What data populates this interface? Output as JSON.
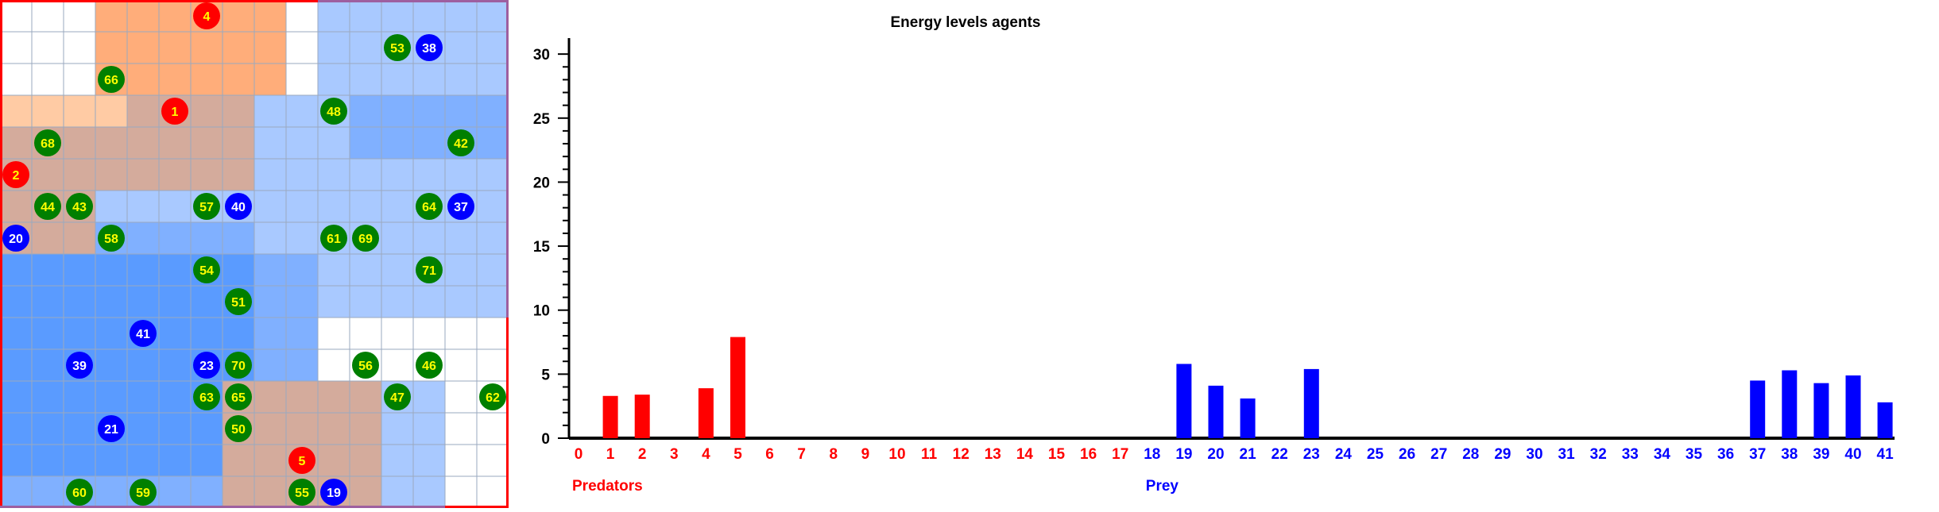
{
  "colors": {
    "predator": "#ff0000",
    "prey": "#0000ff",
    "grass_agent": "#007f00",
    "agent_label": "#ffff00",
    "prey_label": "#ffffff",
    "zone_white": "#ffffff",
    "zone_light_orange": "#ffcba4",
    "zone_orange": "#ffad7a",
    "zone_brown": "#d4ab9c",
    "zone_light_blue": "#a9c9ff",
    "zone_blue": "#80b0ff",
    "zone_mid_blue": "#5a9bff",
    "grid_line": "#9aa9bf",
    "border_red": "#ff0000",
    "border_purple": "#9e5fa0"
  },
  "grid": {
    "cols": 16,
    "rows": 16,
    "zones": [
      "WWWOOOOOOWBBBBBB",
      "WWWOOOOOOWBBBBBB",
      "WWWOOOOOOWBBBBBB",
      "LLLLDDDDBBBCCCCC",
      "DDDDDDDDBBBCCCCC",
      "DDDDDDDDBBBBBBBB",
      "DDDBBBBBBBBBBBBB",
      "DDDCCCCCBBBBBBBB",
      "MMMMMMMMCCBBBBBB",
      "MMMMMMMMCCBBBBBB",
      "MMMMMMMMCCWWWWWW",
      "MMMMMMMMCCWWWWWW",
      "MMMMMMMDDDDDBBWW",
      "MMMMMMMDDDDDBBWW",
      "MMMMMMMDDDDDBBWW",
      "CCCCCCCDDDDDBBWW"
    ],
    "agents": [
      {
        "id": "4",
        "kind": "predator",
        "col": 6,
        "row": 0
      },
      {
        "id": "1",
        "kind": "predator",
        "col": 5,
        "row": 3
      },
      {
        "id": "2",
        "kind": "predator",
        "col": 0,
        "row": 5
      },
      {
        "id": "5",
        "kind": "predator",
        "col": 9,
        "row": 14
      },
      {
        "id": "38",
        "kind": "prey",
        "col": 13,
        "row": 1
      },
      {
        "id": "40",
        "kind": "prey",
        "col": 7,
        "row": 6
      },
      {
        "id": "37",
        "kind": "prey",
        "col": 14,
        "row": 6
      },
      {
        "id": "20",
        "kind": "prey",
        "col": 0,
        "row": 7
      },
      {
        "id": "41",
        "kind": "prey",
        "col": 4,
        "row": 10
      },
      {
        "id": "39",
        "kind": "prey",
        "col": 2,
        "row": 11
      },
      {
        "id": "23",
        "kind": "prey",
        "col": 6,
        "row": 11
      },
      {
        "id": "21",
        "kind": "prey",
        "col": 3,
        "row": 13
      },
      {
        "id": "19",
        "kind": "prey",
        "col": 10,
        "row": 15
      },
      {
        "id": "53",
        "kind": "grass",
        "col": 12,
        "row": 1
      },
      {
        "id": "66",
        "kind": "grass",
        "col": 3,
        "row": 2
      },
      {
        "id": "48",
        "kind": "grass",
        "col": 10,
        "row": 3
      },
      {
        "id": "68",
        "kind": "grass",
        "col": 1,
        "row": 4
      },
      {
        "id": "42",
        "kind": "grass",
        "col": 14,
        "row": 4
      },
      {
        "id": "44",
        "kind": "grass",
        "col": 1,
        "row": 6
      },
      {
        "id": "43",
        "kind": "grass",
        "col": 2,
        "row": 6
      },
      {
        "id": "57",
        "kind": "grass",
        "col": 6,
        "row": 6
      },
      {
        "id": "64",
        "kind": "grass",
        "col": 13,
        "row": 6
      },
      {
        "id": "58",
        "kind": "grass",
        "col": 3,
        "row": 7
      },
      {
        "id": "61",
        "kind": "grass",
        "col": 10,
        "row": 7
      },
      {
        "id": "69",
        "kind": "grass",
        "col": 11,
        "row": 7
      },
      {
        "id": "54",
        "kind": "grass",
        "col": 6,
        "row": 8
      },
      {
        "id": "71",
        "kind": "grass",
        "col": 13,
        "row": 8
      },
      {
        "id": "51",
        "kind": "grass",
        "col": 7,
        "row": 9
      },
      {
        "id": "70",
        "kind": "grass",
        "col": 7,
        "row": 11
      },
      {
        "id": "56",
        "kind": "grass",
        "col": 11,
        "row": 11
      },
      {
        "id": "46",
        "kind": "grass",
        "col": 13,
        "row": 11
      },
      {
        "id": "63",
        "kind": "grass",
        "col": 6,
        "row": 12
      },
      {
        "id": "65",
        "kind": "grass",
        "col": 7,
        "row": 12
      },
      {
        "id": "47",
        "kind": "grass",
        "col": 12,
        "row": 12
      },
      {
        "id": "62",
        "kind": "grass",
        "col": 15,
        "row": 12
      },
      {
        "id": "50",
        "kind": "grass",
        "col": 7,
        "row": 13
      },
      {
        "id": "60",
        "kind": "grass",
        "col": 2,
        "row": 15
      },
      {
        "id": "59",
        "kind": "grass",
        "col": 4,
        "row": 15
      },
      {
        "id": "55",
        "kind": "grass",
        "col": 9,
        "row": 15
      }
    ]
  },
  "chart_data": {
    "type": "bar",
    "title": "Energy levels agents",
    "ylim": [
      0,
      31
    ],
    "y_ticks": [
      0,
      5,
      10,
      15,
      20,
      25,
      30
    ],
    "categories": [
      "0",
      "1",
      "2",
      "3",
      "4",
      "5",
      "6",
      "7",
      "8",
      "9",
      "10",
      "11",
      "12",
      "13",
      "14",
      "15",
      "16",
      "17",
      "18",
      "19",
      "20",
      "21",
      "22",
      "23",
      "24",
      "25",
      "26",
      "27",
      "28",
      "29",
      "30",
      "31",
      "32",
      "33",
      "34",
      "35",
      "36",
      "37",
      "38",
      "39",
      "40",
      "41"
    ],
    "values": [
      0,
      3.3,
      3.4,
      0,
      3.9,
      7.9,
      0,
      0,
      0,
      0,
      0,
      0,
      0,
      0,
      0,
      0,
      0,
      0,
      0,
      5.8,
      4.1,
      3.1,
      0,
      5.4,
      0,
      0,
      0,
      0,
      0,
      0,
      0,
      0,
      0,
      0,
      0,
      0,
      0,
      4.5,
      5.3,
      4.3,
      4.9,
      2.8
    ],
    "groups": [
      {
        "name": "Predators",
        "from": 0,
        "to": 17,
        "color": "#ff0000"
      },
      {
        "name": "Prey",
        "from": 18,
        "to": 41,
        "color": "#0000ff"
      }
    ]
  }
}
